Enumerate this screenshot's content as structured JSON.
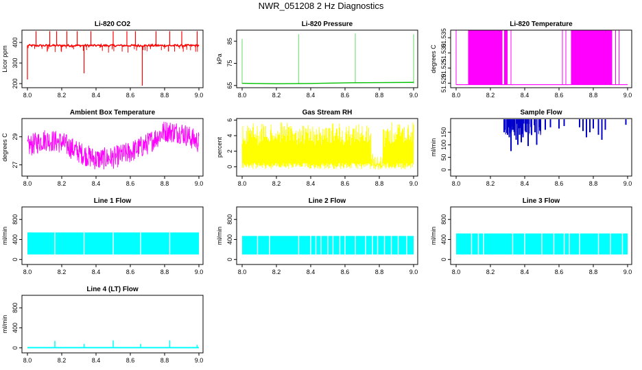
{
  "page_title": "NWR_051208  2 Hz Diagnostics",
  "chart_data": [
    {
      "id": "co2",
      "type": "line",
      "title": "Li-820 CO2",
      "ylabel": "Licor ppm",
      "color": "#ff0000",
      "xlim": [
        8.0,
        9.0
      ],
      "ylim": [
        180,
        460
      ],
      "xticks": [
        "8.0",
        "8.2",
        "8.4",
        "8.6",
        "8.8",
        "9.0"
      ],
      "yticks": [
        200,
        300,
        400
      ],
      "ytick_labels": [
        "200",
        "300",
        "400"
      ],
      "baseline": 385,
      "series": [
        {
          "name": "CO2",
          "x": [
            8.0,
            8.1,
            8.2,
            8.3,
            8.4,
            8.5,
            8.6,
            8.7,
            8.8,
            8.9,
            9.0
          ],
          "values": [
            385,
            386,
            384,
            385,
            385,
            386,
            385,
            384,
            385,
            386,
            385
          ]
        }
      ],
      "spikes": [
        {
          "x": 8.0,
          "y": 220
        },
        {
          "x": 8.05,
          "y": 455
        },
        {
          "x": 8.13,
          "y": 455
        },
        {
          "x": 8.17,
          "y": 455
        },
        {
          "x": 8.23,
          "y": 455
        },
        {
          "x": 8.29,
          "y": 455
        },
        {
          "x": 8.33,
          "y": 250
        },
        {
          "x": 8.37,
          "y": 455
        },
        {
          "x": 8.5,
          "y": 455
        },
        {
          "x": 8.58,
          "y": 455
        },
        {
          "x": 8.63,
          "y": 455
        },
        {
          "x": 8.67,
          "y": 190
        },
        {
          "x": 8.75,
          "y": 455
        },
        {
          "x": 8.83,
          "y": 455
        },
        {
          "x": 8.9,
          "y": 455
        },
        {
          "x": 8.99,
          "y": 455
        }
      ]
    },
    {
      "id": "pressure",
      "type": "line",
      "title": "Li-820 Pressure",
      "ylabel": "kPa",
      "color": "#00c000",
      "xlim": [
        8.0,
        9.0
      ],
      "ylim": [
        64,
        90
      ],
      "xticks": [
        "8.0",
        "8.2",
        "8.4",
        "8.6",
        "8.8",
        "9.0"
      ],
      "yticks": [
        65,
        75,
        85
      ],
      "ytick_labels": [
        "65",
        "75",
        "85"
      ],
      "series": [
        {
          "name": "Pressure",
          "x": [
            8.0,
            8.2,
            8.4,
            8.6,
            8.8,
            9.0
          ],
          "values": [
            66,
            65.8,
            65.9,
            66.2,
            66.3,
            66.4
          ]
        }
      ],
      "spikes": [
        {
          "x": 8.0,
          "y": 86
        },
        {
          "x": 8.33,
          "y": 88
        },
        {
          "x": 8.66,
          "y": 88.5
        },
        {
          "x": 9.0,
          "y": 88
        }
      ]
    },
    {
      "id": "temperature",
      "type": "line",
      "title": "Li-820 Temperature",
      "ylabel": "degrees C",
      "color": "#ff00ff",
      "xlim": [
        8.0,
        9.0
      ],
      "ylim": [
        51.5185,
        51.5375
      ],
      "xticks": [
        "8.0",
        "8.2",
        "8.4",
        "8.6",
        "8.8",
        "9.0"
      ],
      "yticks": [
        51.52,
        51.525,
        51.53,
        51.535
      ],
      "ytick_labels": [
        "51.520",
        "51.525",
        "51.530",
        "51.535"
      ],
      "baseline": 51.5195,
      "bands": [
        [
          8.07,
          8.27
        ],
        [
          8.28,
          8.3
        ],
        [
          8.67,
          8.91
        ]
      ],
      "spikes": [
        8.0,
        8.32,
        8.62,
        8.64,
        8.93,
        8.95
      ]
    },
    {
      "id": "ambient",
      "type": "line",
      "title": "Ambient Box Temperature",
      "ylabel": "degrees C",
      "color": "#ff00ff",
      "xlim": [
        8.0,
        9.0
      ],
      "ylim": [
        26.2,
        30.3
      ],
      "xticks": [
        "8.0",
        "8.2",
        "8.4",
        "8.6",
        "8.8",
        "9.0"
      ],
      "yticks": [
        27,
        29
      ],
      "ytick_labels": [
        "27",
        "29"
      ],
      "series": [
        {
          "name": "Ambient",
          "x": [
            8.0,
            8.1,
            8.2,
            8.3,
            8.4,
            8.5,
            8.6,
            8.7,
            8.8,
            8.9,
            9.0
          ],
          "values": [
            28.3,
            28.8,
            28.6,
            27.9,
            27.4,
            27.5,
            27.9,
            28.5,
            29.4,
            29.3,
            28.6
          ]
        }
      ],
      "noise": 0.8
    },
    {
      "id": "rh",
      "type": "line",
      "title": "Gas Stream RH",
      "ylabel": "percent",
      "color": "#ffff00",
      "xlim": [
        8.0,
        9.0
      ],
      "ylim": [
        -1.2,
        6.2
      ],
      "xticks": [
        "8.0",
        "8.2",
        "8.4",
        "8.6",
        "8.8",
        "9.0"
      ],
      "yticks": [
        0,
        2,
        4,
        6
      ],
      "ytick_labels": [
        "0",
        "2",
        "4",
        "6"
      ],
      "envelope": {
        "low": -0.3,
        "high": 5.0
      }
    },
    {
      "id": "sample",
      "type": "line",
      "title": "Sample Flow",
      "ylabel": "ml/min",
      "color": "#0000cc",
      "xlim": [
        8.0,
        9.0
      ],
      "ylim": [
        -25,
        205
      ],
      "xticks": [
        "8.0",
        "8.2",
        "8.4",
        "8.6",
        "8.8",
        "9.0"
      ],
      "yticks": [
        0,
        50,
        100,
        150
      ],
      "ytick_labels": [
        "0",
        "50",
        "100",
        "150"
      ],
      "top": 205,
      "dips": [
        {
          "x": 8.28,
          "y": 150
        },
        {
          "x": 8.3,
          "y": 140
        },
        {
          "x": 8.31,
          "y": 130
        },
        {
          "x": 8.32,
          "y": 75
        },
        {
          "x": 8.33,
          "y": 160
        },
        {
          "x": 8.35,
          "y": 120
        },
        {
          "x": 8.36,
          "y": 100
        },
        {
          "x": 8.37,
          "y": 140
        },
        {
          "x": 8.38,
          "y": 110
        },
        {
          "x": 8.39,
          "y": 130
        },
        {
          "x": 8.41,
          "y": 150
        },
        {
          "x": 8.42,
          "y": 95
        },
        {
          "x": 8.44,
          "y": 140
        },
        {
          "x": 8.46,
          "y": 150
        },
        {
          "x": 8.47,
          "y": 100
        },
        {
          "x": 8.49,
          "y": 155
        },
        {
          "x": 8.52,
          "y": 160
        },
        {
          "x": 8.55,
          "y": 170
        },
        {
          "x": 8.6,
          "y": 165
        },
        {
          "x": 8.63,
          "y": 175
        },
        {
          "x": 8.72,
          "y": 170
        },
        {
          "x": 8.74,
          "y": 155
        },
        {
          "x": 8.76,
          "y": 130
        },
        {
          "x": 8.78,
          "y": 150
        },
        {
          "x": 8.8,
          "y": 165
        },
        {
          "x": 8.83,
          "y": 140
        },
        {
          "x": 8.85,
          "y": 120
        },
        {
          "x": 8.87,
          "y": 160
        },
        {
          "x": 8.99,
          "y": 180
        }
      ]
    },
    {
      "id": "line1",
      "type": "line",
      "title": "Line 1 Flow",
      "ylabel": "ml/min",
      "color": "#00ffff",
      "xlim": [
        8.0,
        9.0
      ],
      "ylim": [
        -100,
        1050
      ],
      "xticks": [
        "8.0",
        "8.2",
        "8.4",
        "8.6",
        "8.8",
        "9.0"
      ],
      "yticks": [
        0,
        400,
        800
      ],
      "ytick_labels": [
        "0",
        "400",
        "800"
      ],
      "envelope": {
        "low": 100,
        "high": 540
      },
      "gaps": [
        8.16,
        8.33,
        8.5,
        8.66,
        8.83
      ]
    },
    {
      "id": "line2",
      "type": "line",
      "title": "Line 2 Flow",
      "ylabel": "ml/min",
      "color": "#00ffff",
      "xlim": [
        8.0,
        9.0
      ],
      "ylim": [
        -100,
        1050
      ],
      "xticks": [
        "8.0",
        "8.2",
        "8.4",
        "8.6",
        "8.8",
        "9.0"
      ],
      "yticks": [
        0,
        400,
        800
      ],
      "ytick_labels": [
        "0",
        "400",
        "800"
      ],
      "envelope": {
        "low": 100,
        "high": 470
      },
      "gaps": [
        8.09,
        8.16,
        8.33,
        8.4,
        8.43,
        8.46,
        8.5,
        8.53,
        8.57,
        8.6,
        8.66,
        8.72,
        8.76,
        8.79,
        8.83,
        8.87,
        8.91,
        8.96
      ]
    },
    {
      "id": "line3",
      "type": "line",
      "title": "Line 3 Flow",
      "ylabel": "ml/min",
      "color": "#00ffff",
      "xlim": [
        8.0,
        9.0
      ],
      "ylim": [
        -100,
        1050
      ],
      "xticks": [
        "8.0",
        "8.2",
        "8.4",
        "8.6",
        "8.8",
        "9.0"
      ],
      "yticks": [
        0,
        400,
        800
      ],
      "ytick_labels": [
        "0",
        "400",
        "800"
      ],
      "envelope": {
        "low": 100,
        "high": 520
      },
      "gaps": [
        8.09,
        8.13,
        8.16,
        8.33,
        8.4,
        8.5,
        8.57,
        8.63,
        8.66,
        8.72,
        8.83,
        8.9,
        8.97
      ]
    },
    {
      "id": "line4",
      "type": "line",
      "title": "Line 4 (LT) Flow",
      "ylabel": "ml/min",
      "color": "#00ffff",
      "xlim": [
        8.0,
        9.0
      ],
      "ylim": [
        -100,
        1050
      ],
      "xticks": [
        "8.0",
        "8.2",
        "8.4",
        "8.6",
        "8.8",
        "9.0"
      ],
      "yticks": [
        0,
        400,
        800
      ],
      "ytick_labels": [
        "0",
        "400",
        "800"
      ],
      "baseline": 5,
      "spikes": [
        {
          "x": 8.16,
          "y": 140
        },
        {
          "x": 8.33,
          "y": 80
        },
        {
          "x": 8.5,
          "y": 150
        },
        {
          "x": 8.66,
          "y": 80
        },
        {
          "x": 8.83,
          "y": 150
        },
        {
          "x": 8.99,
          "y": 60
        }
      ]
    }
  ]
}
